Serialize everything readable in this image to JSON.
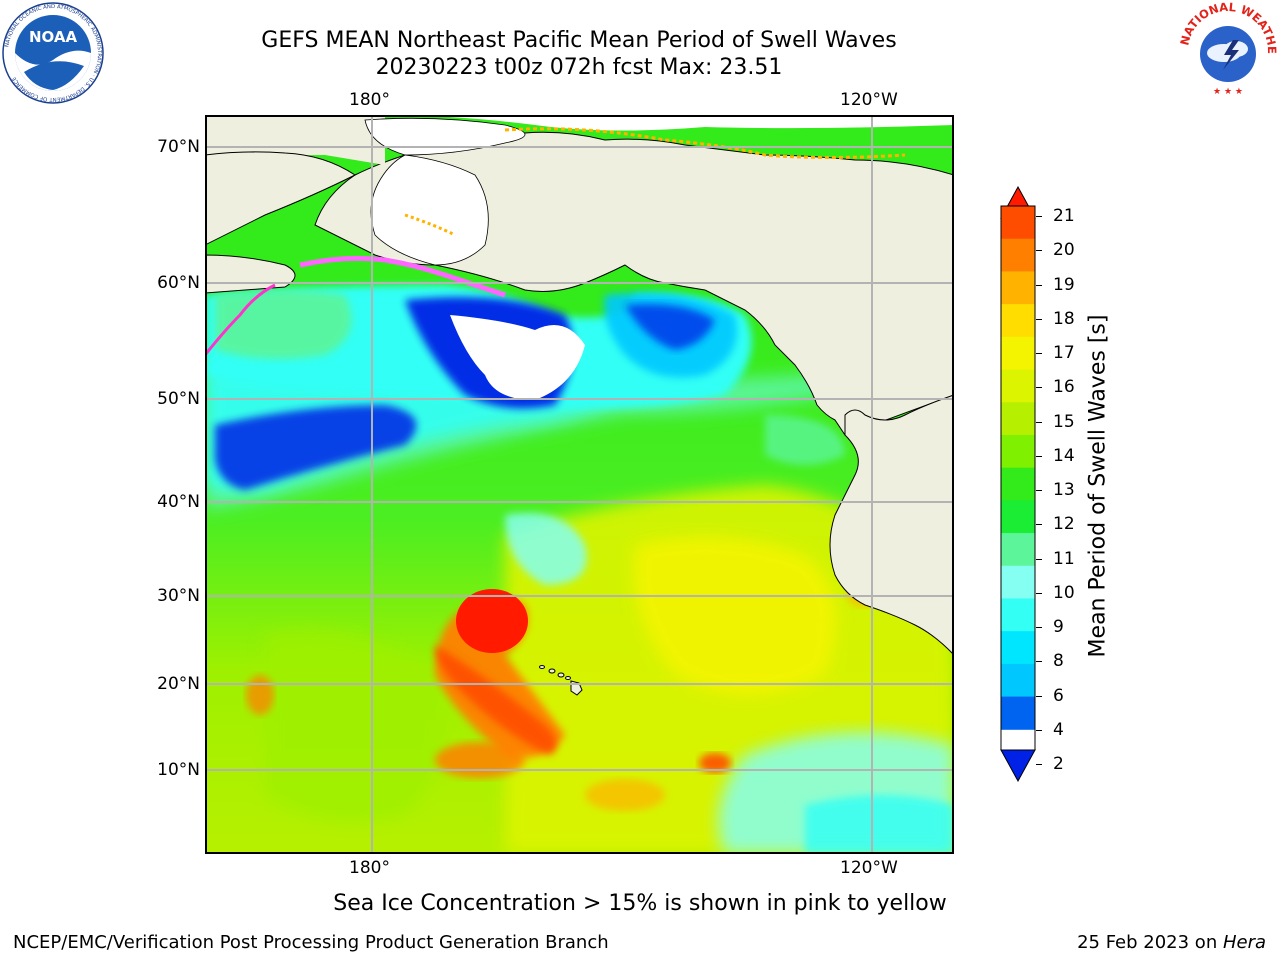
{
  "header": {
    "title_line1": "GEFS MEAN Northeast Pacific Mean Period of Swell Waves",
    "title_line2": "20230223 t00z 072h fcst   Max: 23.51"
  },
  "logos": {
    "left": "NOAA",
    "left_ring_text": "NATIONAL OCEANIC AND ATMOSPHERIC ADMINISTRATION · U.S. DEPARTMENT OF COMMERCE",
    "right_ring_text": "NATIONAL WEATHER SERVICE"
  },
  "map": {
    "lon_labels_top": [
      "180°",
      "120°W"
    ],
    "lon_labels_bottom": [
      "180°",
      "120°W"
    ],
    "lat_labels": [
      "70°N",
      "60°N",
      "50°N",
      "40°N",
      "30°N",
      "20°N",
      "10°N"
    ],
    "gridlines": true
  },
  "colorbar": {
    "label": "Mean Period of Swell Waves [s]",
    "ticks": [
      "21",
      "20",
      "19",
      "18",
      "17",
      "16",
      "15",
      "14",
      "13",
      "12",
      "11",
      "10",
      "9",
      "8",
      "6",
      "4",
      "2"
    ],
    "colors": [
      "#ff1a00",
      "#ff4d00",
      "#ff8000",
      "#ffb300",
      "#ffdd00",
      "#f4f400",
      "#dcf400",
      "#b6f000",
      "#7ff000",
      "#33ea1a",
      "#1aed33",
      "#5cf59a",
      "#85fff1",
      "#33fff5",
      "#00e6ff",
      "#00c8ff",
      "#0064f0",
      "#0022e6"
    ],
    "extend": "both"
  },
  "note": "Sea Ice Concentration > 15% is shown in pink to yellow",
  "footer": {
    "left": "NCEP/EMC/Verification Post Processing Product Generation Branch",
    "right_prefix": "25 Feb 2023 on ",
    "right_host": "Hera"
  }
}
